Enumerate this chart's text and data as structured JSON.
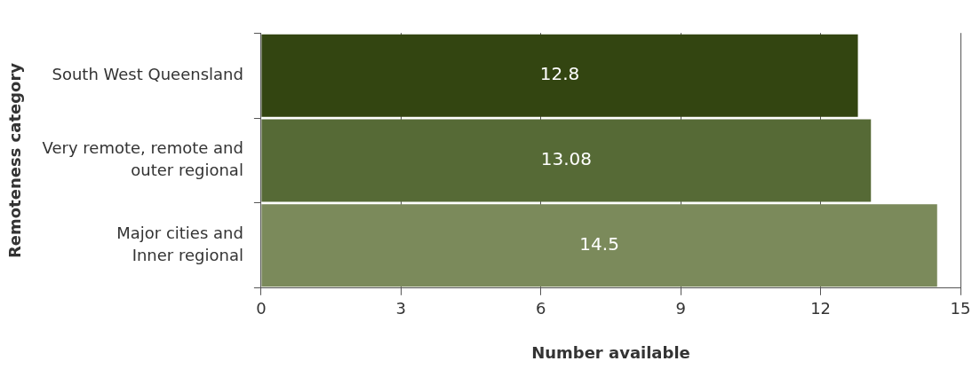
{
  "chart_data": {
    "type": "bar",
    "orientation": "horizontal",
    "xlabel": "Number available",
    "ylabel": "Remoteness category",
    "categories": [
      "South West Queensland",
      "Very remote, remote and\nouter regional",
      "Major cities and\nInner regional"
    ],
    "values": [
      12.8,
      13.08,
      14.5
    ],
    "colors": [
      "#334511",
      "#566a36",
      "#7b8a5b"
    ],
    "xlim": [
      0,
      15
    ],
    "xticks": [
      0,
      3,
      6,
      9,
      12,
      15
    ],
    "grid": "x",
    "data_labels": true,
    "legend": false
  }
}
